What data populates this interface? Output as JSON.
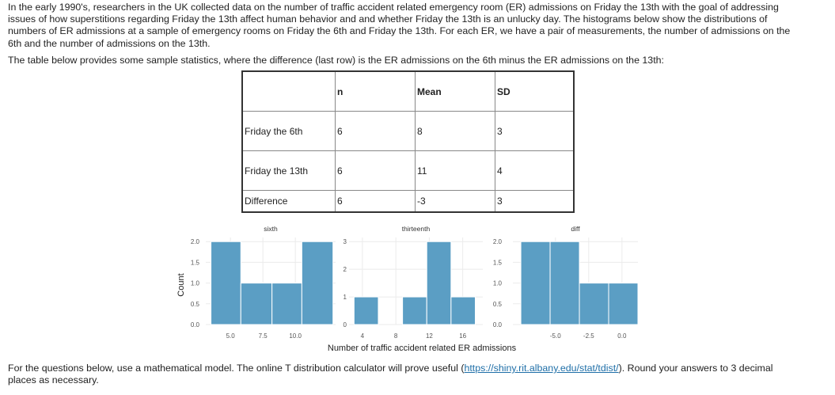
{
  "intro": {
    "text_before": "In the early 1990's, researchers in the UK collected data on the number of traffic accident related emergency room (ER) admissions on Friday the 13th with the goal of addressing issues of how superstitions regarding Friday the 13th affect human behavior and and whether Friday the 13th is an unlucky day. The histograms below show the distributions of numbers of ER admissions at a sample of emergency rooms on Friday the 6th and Friday the 13th.  For each ER, we have a pair of measurements, the number of admissions on the 6th and the number of admissions on the 13th."
  },
  "table_intro": "The table below provides some sample statistics, where the difference (last row) is the ER admissions on the 6th minus the ER admissions on the 13th:",
  "table": {
    "headers": [
      "",
      "n",
      "Mean",
      "SD"
    ],
    "rows": [
      [
        "Friday the 6th",
        "6",
        "8",
        "3"
      ],
      [
        "Friday the 13th",
        "6",
        "11",
        "4"
      ],
      [
        "Difference",
        "6",
        "-3",
        "3"
      ]
    ]
  },
  "colors": {
    "bar_fill": "#5b9ec4",
    "grid": "#ebebeb",
    "axis_text": "#555555"
  },
  "chart_data": {
    "type": "bar",
    "ylabel": "Count",
    "xlabel": "Number of traffic accident related ER admissions",
    "panels": [
      {
        "title": "sixth",
        "xlim": [
          3.1,
          13.1
        ],
        "ylim": [
          0,
          2.1
        ],
        "yticks": [
          "0.0",
          "0.5",
          "1.0",
          "1.5",
          "2.0"
        ],
        "yticks_values": [
          0,
          0.5,
          1.0,
          1.5,
          2.0
        ],
        "xticks": [
          "5.0",
          "7.5",
          "10.0"
        ],
        "xticks_values": [
          5.0,
          7.5,
          10.0
        ],
        "bins": [
          {
            "x0": 3.5,
            "x1": 5.8,
            "count": 2
          },
          {
            "x0": 5.8,
            "x1": 8.2,
            "count": 1
          },
          {
            "x0": 8.2,
            "x1": 10.5,
            "count": 1
          },
          {
            "x0": 10.5,
            "x1": 12.9,
            "count": 2
          }
        ]
      },
      {
        "title": "thirteenth",
        "xlim": [
          2.4,
          18.4
        ],
        "ylim": [
          0,
          3.15
        ],
        "yticks": [
          "0",
          "1",
          "2",
          "3"
        ],
        "yticks_values": [
          0,
          1,
          2,
          3
        ],
        "xticks": [
          "4",
          "8",
          "12",
          "16"
        ],
        "xticks_values": [
          4,
          8,
          12,
          16
        ],
        "bins": [
          {
            "x0": 3.0,
            "x1": 5.9,
            "count": 1
          },
          {
            "x0": 5.9,
            "x1": 8.8,
            "count": 0
          },
          {
            "x0": 8.8,
            "x1": 11.7,
            "count": 1
          },
          {
            "x0": 11.7,
            "x1": 14.6,
            "count": 3
          },
          {
            "x0": 14.6,
            "x1": 17.5,
            "count": 1
          }
        ]
      },
      {
        "title": "diff",
        "xlim": [
          -8.2,
          1.2
        ],
        "ylim": [
          0,
          2.1
        ],
        "yticks": [
          "0.0",
          "0.5",
          "1.0",
          "1.5",
          "2.0"
        ],
        "yticks_values": [
          0,
          0.5,
          1.0,
          1.5,
          2.0
        ],
        "xticks": [
          "-5.0",
          "-2.5",
          "0.0"
        ],
        "xticks_values": [
          -5.0,
          -2.5,
          0.0
        ],
        "bins": [
          {
            "x0": -7.6,
            "x1": -5.4,
            "count": 2
          },
          {
            "x0": -5.4,
            "x1": -3.2,
            "count": 2
          },
          {
            "x0": -3.2,
            "x1": -1.0,
            "count": 1
          },
          {
            "x0": -1.0,
            "x1": 1.2,
            "count": 1
          }
        ]
      }
    ]
  },
  "footer": {
    "before_link": "For the questions below, use a mathematical model.  The online T distribution calculator will prove useful (",
    "link_text": "https://shiny.rit.albany.edu/stat/tdist/",
    "after_link": ").  Round your answers to 3 decimal places as necessary."
  }
}
